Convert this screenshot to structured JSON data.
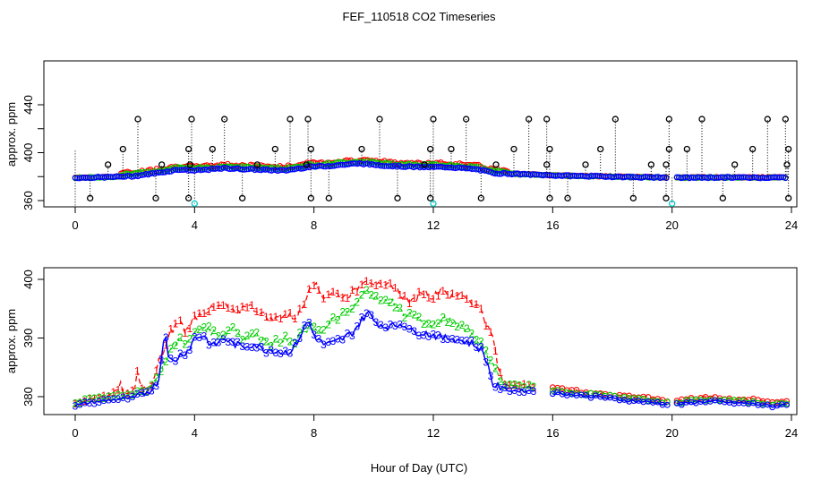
{
  "title": "FEF_110518  CO2 Timeseries",
  "xlabel": "Hour of Day (UTC)",
  "colors": {
    "s1": "#ff0000",
    "s2": "#00cc00",
    "s3": "#0000ff",
    "spike": "#000000",
    "dip": "#00cccc"
  },
  "chart_data": [
    {
      "type": "scatter",
      "ylabel": "approx. ppm",
      "xlim": [
        0,
        24
      ],
      "ylim": [
        357,
        425
      ],
      "xticks": [
        "0",
        "4",
        "8",
        "12",
        "16",
        "20",
        "24"
      ],
      "yticks": [
        "360",
        "400",
        "440"
      ],
      "baseline": [
        [
          0,
          379
        ],
        [
          1,
          379.5
        ],
        [
          2,
          380.5
        ],
        [
          3,
          384
        ],
        [
          3.5,
          386
        ],
        [
          4,
          385
        ],
        [
          5,
          387
        ],
        [
          6,
          386
        ],
        [
          7,
          385
        ],
        [
          7.8,
          388
        ],
        [
          8.5,
          389
        ],
        [
          9.5,
          391
        ],
        [
          10.5,
          389
        ],
        [
          11.5,
          388
        ],
        [
          12.5,
          388
        ],
        [
          13.5,
          386
        ],
        [
          14,
          383
        ],
        [
          15,
          382
        ],
        [
          16,
          381
        ],
        [
          17,
          380.5
        ],
        [
          18,
          380
        ],
        [
          19,
          379.5
        ],
        [
          19.9,
          379.3
        ],
        [
          20.2,
          379
        ],
        [
          21,
          379.3
        ],
        [
          22,
          379.3
        ],
        [
          23,
          379.2
        ],
        [
          23.8,
          379.3
        ]
      ],
      "spikes_high": [
        2.1,
        3.9,
        5.0,
        7.2,
        7.8,
        10.2,
        12.0,
        13.1,
        15.2,
        15.8,
        18.1,
        19.9,
        21.0,
        23.2,
        23.8
      ],
      "spikes_mid": [
        1.6,
        3.8,
        4.6,
        6.7,
        7.9,
        9.6,
        11.9,
        12.6,
        14.7,
        15.9,
        17.6,
        19.9,
        20.5,
        22.7,
        23.9
      ],
      "spikes_low": [
        1.1,
        2.9,
        3.85,
        6.1,
        7.75,
        11.7,
        14.1,
        15.8,
        17.1,
        19.3,
        19.8,
        22.1,
        23.85
      ],
      "dips_black": [
        0.5,
        2.7,
        3.8,
        5.6,
        7.9,
        8.5,
        10.8,
        11.9,
        13.6,
        15.9,
        16.5,
        18.7,
        19.8,
        21.7,
        23.9
      ],
      "dips_cyan": [
        4.0,
        12.0,
        20.0
      ],
      "spike_values": {
        "high": 428,
        "mid": 403,
        "low": 390,
        "dip": 362,
        "dip_cyan": 357.5
      }
    },
    {
      "type": "line",
      "ylabel": "approx. ppm",
      "xlim": [
        0,
        24
      ],
      "ylim": [
        377,
        402
      ],
      "xticks": [
        "0",
        "4",
        "8",
        "12",
        "16",
        "20",
        "24"
      ],
      "yticks": [
        "380",
        "390",
        "400"
      ],
      "gaps": [
        [
          15.4,
          16.0
        ],
        [
          19.9,
          20.1
        ]
      ],
      "series": [
        {
          "name": "1",
          "values": [
            [
              0,
              379
            ],
            [
              0.5,
              379.6
            ],
            [
              1.0,
              380
            ],
            [
              1.5,
              381.5
            ],
            [
              1.55,
              383.8
            ],
            [
              1.6,
              380.5
            ],
            [
              2.0,
              381
            ],
            [
              2.1,
              385
            ],
            [
              2.2,
              381
            ],
            [
              2.6,
              382
            ],
            [
              2.8,
              386
            ],
            [
              3.0,
              388
            ],
            [
              3.2,
              391
            ],
            [
              3.5,
              393
            ],
            [
              3.7,
              391
            ],
            [
              4.0,
              393.5
            ],
            [
              4.3,
              394.5
            ],
            [
              4.6,
              395
            ],
            [
              5.0,
              395.5
            ],
            [
              5.4,
              394
            ],
            [
              5.7,
              395.8
            ],
            [
              6.0,
              395
            ],
            [
              6.3,
              394
            ],
            [
              6.6,
              393
            ],
            [
              7.0,
              394
            ],
            [
              7.4,
              393.5
            ],
            [
              7.7,
              396
            ],
            [
              7.8,
              398.5
            ],
            [
              8.0,
              399.5
            ],
            [
              8.3,
              397
            ],
            [
              8.6,
              397.8
            ],
            [
              9.0,
              397
            ],
            [
              9.4,
              398
            ],
            [
              9.7,
              400.2
            ],
            [
              10.0,
              399.5
            ],
            [
              10.3,
              398.5
            ],
            [
              10.6,
              399.2
            ],
            [
              11.0,
              397
            ],
            [
              11.3,
              396
            ],
            [
              11.6,
              398
            ],
            [
              12.0,
              397
            ],
            [
              12.3,
              398.5
            ],
            [
              12.6,
              397
            ],
            [
              13.0,
              397.5
            ],
            [
              13.3,
              396
            ],
            [
              13.6,
              395
            ],
            [
              13.8,
              392
            ],
            [
              14.0,
              390
            ],
            [
              14.2,
              384
            ],
            [
              14.4,
              382
            ],
            [
              15.0,
              382
            ],
            [
              15.3,
              381.8
            ]
          ]
        },
        {
          "name": "2",
          "values": [
            [
              0,
              379
            ],
            [
              0.5,
              379.5
            ],
            [
              1.0,
              379.8
            ],
            [
              1.5,
              380.3
            ],
            [
              2.0,
              380.5
            ],
            [
              2.3,
              381
            ],
            [
              2.6,
              382
            ],
            [
              2.8,
              384
            ],
            [
              3.0,
              386
            ],
            [
              3.2,
              388
            ],
            [
              3.5,
              390
            ],
            [
              3.8,
              389
            ],
            [
              4.0,
              391
            ],
            [
              4.3,
              392
            ],
            [
              4.6,
              391
            ],
            [
              5.0,
              390.5
            ],
            [
              5.3,
              392
            ],
            [
              5.6,
              390
            ],
            [
              6.0,
              390.5
            ],
            [
              6.3,
              390
            ],
            [
              6.6,
              389
            ],
            [
              7.0,
              390
            ],
            [
              7.3,
              388.5
            ],
            [
              7.6,
              391
            ],
            [
              8.0,
              392
            ],
            [
              8.3,
              391
            ],
            [
              8.6,
              393
            ],
            [
              9.0,
              394
            ],
            [
              9.3,
              395
            ],
            [
              9.6,
              397
            ],
            [
              9.8,
              398.8
            ],
            [
              10.0,
              397
            ],
            [
              10.3,
              396
            ],
            [
              10.6,
              396.5
            ],
            [
              11.0,
              394
            ],
            [
              11.3,
              394
            ],
            [
              11.6,
              393
            ],
            [
              12.0,
              392
            ],
            [
              12.3,
              393
            ],
            [
              12.6,
              393
            ],
            [
              13.0,
              392
            ],
            [
              13.3,
              391
            ],
            [
              13.6,
              389
            ],
            [
              13.8,
              387
            ],
            [
              14.0,
              386
            ],
            [
              14.2,
              383
            ],
            [
              14.4,
              382
            ],
            [
              15.0,
              381.8
            ],
            [
              15.3,
              381.8
            ]
          ]
        },
        {
          "name": "3",
          "values": [
            [
              0,
              378.5
            ],
            [
              0.5,
              379
            ],
            [
              1.0,
              379.3
            ],
            [
              1.5,
              379.6
            ],
            [
              2.0,
              379.8
            ],
            [
              2.3,
              380.5
            ],
            [
              2.6,
              381.5
            ],
            [
              2.8,
              383
            ],
            [
              2.95,
              389
            ],
            [
              3.0,
              393.5
            ],
            [
              3.1,
              386.5
            ],
            [
              3.3,
              386
            ],
            [
              3.5,
              387
            ],
            [
              3.8,
              388
            ],
            [
              4.0,
              390
            ],
            [
              4.3,
              390.5
            ],
            [
              4.6,
              388.5
            ],
            [
              5.0,
              390
            ],
            [
              5.3,
              389
            ],
            [
              5.6,
              388.5
            ],
            [
              6.0,
              389
            ],
            [
              6.3,
              388
            ],
            [
              6.6,
              388
            ],
            [
              7.0,
              387.5
            ],
            [
              7.3,
              388
            ],
            [
              7.6,
              391
            ],
            [
              7.8,
              393
            ],
            [
              8.0,
              390.5
            ],
            [
              8.3,
              389
            ],
            [
              8.6,
              389
            ],
            [
              9.0,
              390
            ],
            [
              9.3,
              391
            ],
            [
              9.6,
              393
            ],
            [
              9.8,
              394.5
            ],
            [
              10.0,
              393
            ],
            [
              10.3,
              392
            ],
            [
              10.6,
              392
            ],
            [
              11.0,
              392.5
            ],
            [
              11.3,
              391
            ],
            [
              11.6,
              391
            ],
            [
              12.0,
              390.5
            ],
            [
              12.3,
              390
            ],
            [
              12.6,
              390
            ],
            [
              13.0,
              389.5
            ],
            [
              13.3,
              389
            ],
            [
              13.6,
              388
            ],
            [
              13.8,
              386
            ],
            [
              14.0,
              382
            ],
            [
              14.3,
              381.5
            ],
            [
              14.6,
              381
            ],
            [
              15.0,
              381
            ],
            [
              15.3,
              381
            ]
          ]
        }
      ],
      "flat_tail": [
        [
          16.0,
          381
        ],
        [
          16.5,
          380.8
        ],
        [
          17.0,
          380.5
        ],
        [
          17.5,
          380.3
        ],
        [
          18.0,
          380
        ],
        [
          18.5,
          379.7
        ],
        [
          19.0,
          379.5
        ],
        [
          19.5,
          379.3
        ],
        [
          19.9,
          379
        ],
        [
          20.1,
          379
        ],
        [
          20.5,
          379.2
        ],
        [
          21.0,
          379.5
        ],
        [
          21.5,
          379.5
        ],
        [
          22.0,
          379.3
        ],
        [
          22.5,
          379.2
        ],
        [
          23.0,
          379
        ],
        [
          23.4,
          378.7
        ],
        [
          23.8,
          379
        ]
      ]
    }
  ]
}
